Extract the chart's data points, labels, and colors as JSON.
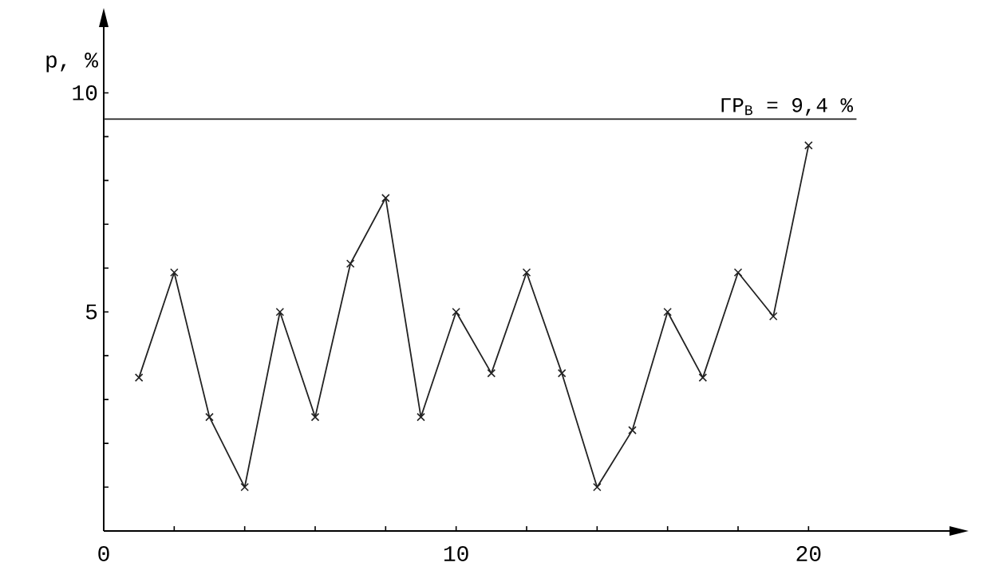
{
  "chart_data": {
    "type": "line",
    "ylabel": "p, %",
    "x": [
      1,
      2,
      3,
      4,
      5,
      6,
      7,
      8,
      9,
      10,
      11,
      12,
      13,
      14,
      15,
      16,
      17,
      18,
      19,
      20
    ],
    "series": [
      {
        "color": "#222222",
        "values": [
          3.5,
          5.9,
          2.6,
          1.0,
          5.0,
          2.6,
          6.1,
          7.6,
          2.6,
          5.0,
          3.6,
          5.9,
          3.6,
          1.0,
          2.3,
          5.0,
          3.5,
          5.9,
          4.9,
          8.8
        ]
      }
    ],
    "xlim": [
      0,
      24
    ],
    "ylim": [
      0,
      11.5
    ],
    "xticks": [
      0,
      {
        "value": 2,
        "label": null
      },
      {
        "value": 4,
        "label": null
      },
      {
        "value": 6,
        "label": null
      },
      {
        "value": 8,
        "label": null
      },
      10,
      {
        "value": 12,
        "label": null
      },
      {
        "value": 14,
        "label": null
      },
      {
        "value": 16,
        "label": null
      },
      {
        "value": 18,
        "label": null
      },
      20
    ],
    "yticks": [
      {
        "value": 1,
        "label": null
      },
      {
        "value": 2,
        "label": null
      },
      {
        "value": 3,
        "label": null
      },
      {
        "value": 4,
        "label": null
      },
      5,
      {
        "value": 6,
        "label": null
      },
      {
        "value": 7,
        "label": null
      },
      {
        "value": 8,
        "label": null
      },
      {
        "value": 9,
        "label": null
      },
      10
    ],
    "ref_lines": [
      {
        "axis": "y",
        "value": 9.4,
        "label": "ГР$_{В}$ = 9,4 %",
        "color": "#222222"
      }
    ],
    "marker": "cross",
    "line_style": "solid"
  }
}
